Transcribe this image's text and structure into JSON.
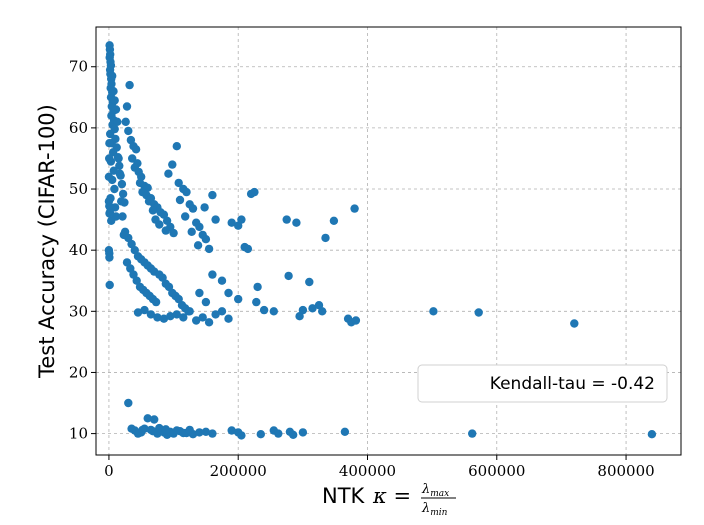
{
  "chart_data": {
    "type": "scatter",
    "title": "",
    "xlabel": "NTK",
    "xlabel_math": {
      "kappa": "κ =",
      "numerator": "λ",
      "numerator_sub": "max",
      "denominator": "λ",
      "denominator_sub": "min"
    },
    "ylabel": "Test Accuracy (CIFAR-100)",
    "xlim": [
      -20000,
      885000
    ],
    "ylim": [
      6.5,
      76.5
    ],
    "xticks": [
      0,
      200000,
      400000,
      600000,
      800000
    ],
    "xtick_labels": [
      "0",
      "200000",
      "400000",
      "600000",
      "800000"
    ],
    "yticks": [
      10,
      20,
      30,
      40,
      50,
      60,
      70
    ],
    "ytick_labels": [
      "10",
      "20",
      "30",
      "40",
      "50",
      "60",
      "70"
    ],
    "grid": true,
    "legend_position": "lower-right",
    "annotation": "Kendall-tau = -0.42",
    "color": "#1f77b4",
    "points": [
      [
        1000,
        73.5
      ],
      [
        1500,
        72.8
      ],
      [
        2000,
        72.0
      ],
      [
        1200,
        71.5
      ],
      [
        2500,
        70.8
      ],
      [
        3000,
        70.2
      ],
      [
        1800,
        69.5
      ],
      [
        2200,
        68.8
      ],
      [
        3500,
        68.0
      ],
      [
        4000,
        67.2
      ],
      [
        2800,
        66.5
      ],
      [
        5000,
        65.8
      ],
      [
        3200,
        65.0
      ],
      [
        6000,
        64.2
      ],
      [
        4500,
        63.5
      ],
      [
        7000,
        62.8
      ],
      [
        3800,
        62.0
      ],
      [
        8000,
        61.2
      ],
      [
        5500,
        60.5
      ],
      [
        9000,
        59.8
      ],
      [
        2000,
        59.0
      ],
      [
        10000,
        58.2
      ],
      [
        4200,
        57.5
      ],
      [
        12000,
        56.8
      ],
      [
        6500,
        56.0
      ],
      [
        14000,
        55.2
      ],
      [
        3000,
        54.5
      ],
      [
        16000,
        53.8
      ],
      [
        7500,
        53.0
      ],
      [
        18000,
        52.2
      ],
      [
        5000,
        51.5
      ],
      [
        20000,
        50.8
      ],
      [
        8500,
        50.0
      ],
      [
        22000,
        49.2
      ],
      [
        2500,
        48.5
      ],
      [
        24000,
        47.8
      ],
      [
        9500,
        47.0
      ],
      [
        1500,
        46.2
      ],
      [
        11000,
        45.5
      ],
      [
        3500,
        44.8
      ],
      [
        32000,
        67.0
      ],
      [
        28000,
        63.5
      ],
      [
        26000,
        61.0
      ],
      [
        30000,
        59.5
      ],
      [
        34000,
        58.0
      ],
      [
        38000,
        57.0
      ],
      [
        42000,
        56.5
      ],
      [
        36000,
        55.0
      ],
      [
        44000,
        54.2
      ],
      [
        40000,
        53.5
      ],
      [
        46000,
        52.8
      ],
      [
        50000,
        52.0
      ],
      [
        48000,
        51.0
      ],
      [
        55000,
        50.5
      ],
      [
        60000,
        50.2
      ],
      [
        52000,
        49.5
      ],
      [
        58000,
        49.0
      ],
      [
        65000,
        48.5
      ],
      [
        62000,
        48.0
      ],
      [
        70000,
        47.5
      ],
      [
        75000,
        47.0
      ],
      [
        68000,
        46.5
      ],
      [
        80000,
        46.2
      ],
      [
        85000,
        45.8
      ],
      [
        72000,
        45.0
      ],
      [
        90000,
        44.8
      ],
      [
        78000,
        44.2
      ],
      [
        95000,
        43.8
      ],
      [
        88000,
        43.2
      ],
      [
        100000,
        42.8
      ],
      [
        105000,
        57.0
      ],
      [
        98000,
        54.0
      ],
      [
        92000,
        52.5
      ],
      [
        108000,
        51.0
      ],
      [
        115000,
        50.0
      ],
      [
        120000,
        49.5
      ],
      [
        110000,
        48.2
      ],
      [
        125000,
        47.5
      ],
      [
        130000,
        46.8
      ],
      [
        118000,
        45.5
      ],
      [
        135000,
        44.5
      ],
      [
        140000,
        43.8
      ],
      [
        128000,
        43.0
      ],
      [
        145000,
        42.5
      ],
      [
        150000,
        41.8
      ],
      [
        138000,
        40.8
      ],
      [
        155000,
        40.2
      ],
      [
        160000,
        49.0
      ],
      [
        148000,
        47.0
      ],
      [
        165000,
        45.0
      ],
      [
        25000,
        43.0
      ],
      [
        30000,
        42.0
      ],
      [
        35000,
        41.0
      ],
      [
        40000,
        40.0
      ],
      [
        45000,
        39.0
      ],
      [
        50000,
        38.5
      ],
      [
        55000,
        38.0
      ],
      [
        60000,
        37.5
      ],
      [
        65000,
        37.0
      ],
      [
        70000,
        36.5
      ],
      [
        28000,
        38.0
      ],
      [
        33000,
        37.0
      ],
      [
        38000,
        36.0
      ],
      [
        43000,
        35.0
      ],
      [
        48000,
        34.0
      ],
      [
        53000,
        33.5
      ],
      [
        58000,
        33.0
      ],
      [
        63000,
        32.5
      ],
      [
        68000,
        32.0
      ],
      [
        73000,
        31.5
      ],
      [
        78000,
        36.0
      ],
      [
        83000,
        35.5
      ],
      [
        88000,
        34.5
      ],
      [
        93000,
        34.0
      ],
      [
        98000,
        33.0
      ],
      [
        103000,
        32.5
      ],
      [
        108000,
        32.0
      ],
      [
        113000,
        31.0
      ],
      [
        118000,
        30.5
      ],
      [
        123000,
        30.0
      ],
      [
        45000,
        29.8
      ],
      [
        55000,
        30.2
      ],
      [
        65000,
        29.5
      ],
      [
        75000,
        29.0
      ],
      [
        85000,
        28.8
      ],
      [
        95000,
        29.2
      ],
      [
        105000,
        29.5
      ],
      [
        115000,
        29.0
      ],
      [
        125000,
        30.0
      ],
      [
        135000,
        28.5
      ],
      [
        145000,
        29.0
      ],
      [
        155000,
        28.2
      ],
      [
        165000,
        29.5
      ],
      [
        175000,
        30.0
      ],
      [
        185000,
        28.8
      ],
      [
        190000,
        44.5
      ],
      [
        200000,
        44.0
      ],
      [
        205000,
        45.0
      ],
      [
        210000,
        40.5
      ],
      [
        215000,
        40.2
      ],
      [
        220000,
        49.2
      ],
      [
        225000,
        49.5
      ],
      [
        230000,
        34.0
      ],
      [
        228000,
        31.5
      ],
      [
        240000,
        30.2
      ],
      [
        255000,
        30.0
      ],
      [
        275000,
        45.0
      ],
      [
        278000,
        35.8
      ],
      [
        290000,
        44.5
      ],
      [
        295000,
        29.2
      ],
      [
        300000,
        30.2
      ],
      [
        310000,
        34.8
      ],
      [
        315000,
        30.5
      ],
      [
        325000,
        31.0
      ],
      [
        330000,
        30.0
      ],
      [
        335000,
        42.0
      ],
      [
        348000,
        44.8
      ],
      [
        370000,
        28.8
      ],
      [
        375000,
        28.2
      ],
      [
        380000,
        46.8
      ],
      [
        382000,
        28.5
      ],
      [
        502000,
        30.0
      ],
      [
        572000,
        29.8
      ],
      [
        720000,
        28.0
      ],
      [
        185000,
        33.0
      ],
      [
        175000,
        35.0
      ],
      [
        200000,
        32.0
      ],
      [
        160000,
        36.0
      ],
      [
        150000,
        31.5
      ],
      [
        140000,
        33.0
      ],
      [
        0,
        40.0
      ],
      [
        500,
        39.5
      ],
      [
        800,
        38.8
      ],
      [
        1200,
        34.3
      ],
      [
        0,
        48.0
      ],
      [
        600,
        47.2
      ],
      [
        900,
        46.0
      ],
      [
        0,
        52.0
      ],
      [
        400,
        55.0
      ],
      [
        700,
        57.5
      ],
      [
        15000,
        55.0
      ],
      [
        17000,
        52.5
      ],
      [
        19000,
        48.0
      ],
      [
        21000,
        45.5
      ],
      [
        23000,
        42.5
      ],
      [
        13000,
        61.0
      ],
      [
        11000,
        63.0
      ],
      [
        9000,
        64.5
      ],
      [
        7000,
        66.0
      ],
      [
        5000,
        68.5
      ],
      [
        30000,
        15.0
      ],
      [
        40000,
        10.5
      ],
      [
        50000,
        10.2
      ],
      [
        55000,
        10.8
      ],
      [
        60000,
        12.5
      ],
      [
        70000,
        12.3
      ],
      [
        75000,
        10.0
      ],
      [
        80000,
        10.5
      ],
      [
        85000,
        10.2
      ],
      [
        90000,
        9.8
      ],
      [
        95000,
        10.3
      ],
      [
        100000,
        10.0
      ],
      [
        110000,
        10.4
      ],
      [
        120000,
        10.1
      ],
      [
        130000,
        9.9
      ],
      [
        140000,
        10.2
      ],
      [
        150000,
        10.3
      ],
      [
        160000,
        10.0
      ],
      [
        45000,
        10.0
      ],
      [
        65000,
        10.6
      ],
      [
        190000,
        10.5
      ],
      [
        200000,
        10.2
      ],
      [
        205000,
        9.7
      ],
      [
        235000,
        9.9
      ],
      [
        255000,
        10.5
      ],
      [
        262000,
        10.0
      ],
      [
        280000,
        10.3
      ],
      [
        285000,
        9.8
      ],
      [
        300000,
        10.2
      ],
      [
        365000,
        10.3
      ],
      [
        562000,
        10.0
      ],
      [
        840000,
        9.9
      ],
      [
        35000,
        10.8
      ],
      [
        52000,
        10.6
      ],
      [
        68000,
        10.4
      ],
      [
        78000,
        10.9
      ],
      [
        88000,
        10.7
      ],
      [
        105000,
        10.5
      ],
      [
        115000,
        10.1
      ],
      [
        125000,
        10.6
      ]
    ]
  }
}
